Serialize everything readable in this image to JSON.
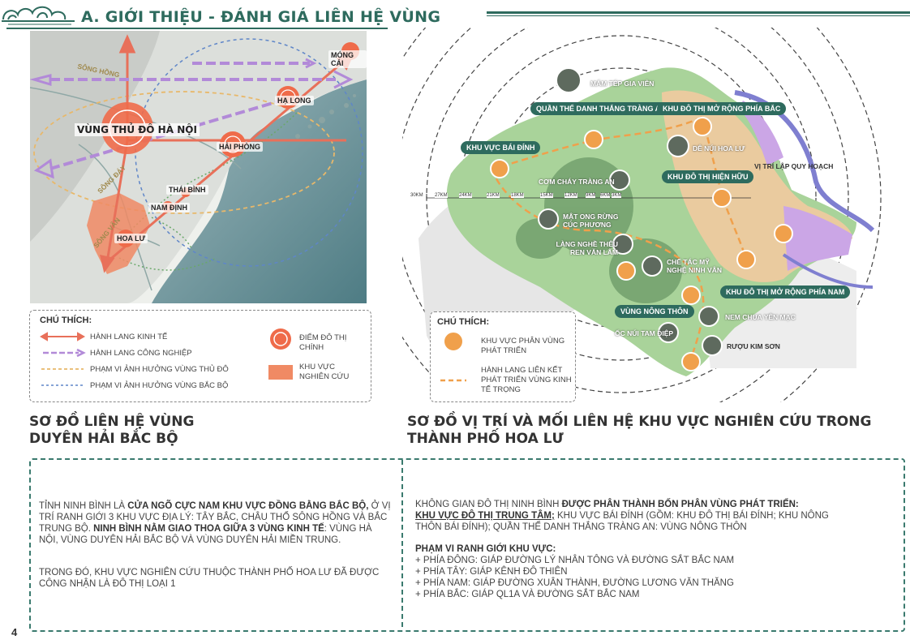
{
  "header": {
    "title": "A. GIỚI THIỆU - ĐÁNH GIÁ LIÊN HỆ VÙNG"
  },
  "left_map": {
    "labels": {
      "song_hong": "SÔNG HỒNG",
      "song_day": "SÔNG ĐÁY",
      "song_van": "SÔNG VÂN",
      "capital_region": "VÙNG THỦ ĐÔ HÀ NỘI",
      "mong_cai": "MÓNG CÁI",
      "ha_long": "HẠ LONG",
      "hai_phong": "HẢI PHÒNG",
      "thai_binh": "THÁI BÌNH",
      "nam_dinh": "NAM ĐỊNH",
      "hoa_lu": "HOA LƯ"
    },
    "legend": {
      "title": "CHÚ THÍCH:",
      "items": [
        "HÀNH LANG KINH TẾ",
        "HÀNH LANG CÔNG NGHIỆP",
        "PHẠM VI ẢNH HƯỞNG VÙNG THỦ ĐÔ",
        "PHẠM VI ẢNH HƯỞNG VÙNG BẮC BỘ"
      ],
      "right_items": [
        "ĐIỂM ĐÔ THỊ CHÍNH",
        "KHU VỰC NGHIÊN CỨU"
      ]
    },
    "title_line1": "SƠ ĐỒ LIÊN HỆ VÙNG",
    "title_line2": "DUYÊN HẢI BẮC BỘ"
  },
  "right_map": {
    "zones": [
      "QUẦN THỂ DANH THẮNG TRÀNG AN",
      "KHU ĐÔ THỊ MỞ RỘNG PHÍA BẮC",
      "KHU VỰC BÁI ĐÍNH",
      "KHU ĐÔ THỊ HIỆN HỮU",
      "KHU ĐÔ THỊ MỞ RỘNG PHÍA NAM",
      "VÙNG NÔNG THÔN"
    ],
    "products": [
      "MẮM TÉP GIA VIỄN",
      "DÊ NÚI HOA LƯ",
      "CƠM CHÁY TRÀNG AN",
      "MẬT ONG RỪNG CÚC PHƯƠNG",
      "LÀNG NGHỀ THÊU REN VĂN LÂM",
      "CHẾ TÁC MỸ NGHỆ NINH VÂN",
      "NEM CHUA YÊN MẠC",
      "ỐC NÚI TAM ĐIỆP",
      "RƯỢU KIM SƠN"
    ],
    "planning_position": "VỊ TRÍ LẬP QUY HOẠCH",
    "scale_labels": [
      "30KM",
      "27KM",
      "24KM",
      "21KM",
      "18KM",
      "15KM",
      "12KM",
      "9KM",
      "6KM",
      "3KM"
    ],
    "legend": {
      "title": "CHÚ THÍCH:",
      "items": [
        "KHU VỰC PHÂN VÙNG PHÁT TRIỂN",
        "HÀNH LANG LIÊN KẾT PHÁT TRIỂN VÙNG KINH TẾ TRỌNG"
      ]
    },
    "title_line1": "SƠ ĐỒ VỊ TRÍ VÀ MỐI LIÊN HỆ KHU VỰC NGHIÊN CỨU TRONG",
    "title_line2": "THÀNH PHỐ HOA LƯ"
  },
  "info_left": {
    "p1_a": "TỈNH NINH BÌNH LÀ ",
    "p1_b": "CỬA NGÕ CỰC NAM KHU VỰC ĐỒNG BẰNG BẮC BỘ,",
    "p1_c": " Ở VỊ TRÍ RANH GIỚI 3 KHU VỰC ĐỊA LÝ: TÂY BẮC, CHÂU THỔ SÔNG HỒNG VÀ BẮC TRUNG BỘ. ",
    "p1_d": "NINH BÌNH NẰM GIAO THOA GIỮA 3 VÙNG KINH TẾ",
    "p1_e": ": VÙNG HÀ NỘI, VÙNG DUYÊN HẢI BẮC BỘ VÀ VÙNG DUYÊN HẢI MIỀN TRUNG.",
    "p2": "TRONG ĐÓ, KHU VỰC NGHIÊN CỨU THUỘC THÀNH PHỐ HOA LƯ ĐÃ ĐƯỢC CÔNG NHẬN LÀ ĐÔ THỊ LOẠI 1"
  },
  "info_right": {
    "p1_a": "KHÔNG GIAN ĐÔ THỊ NINH BÌNH ",
    "p1_b": "ĐƯỢC PHÂN THÀNH BỐN PHÂN VÙNG PHÁT TRIỂN:",
    "p1_c": "KHU VỰC ĐÔ THỊ TRUNG TÂM;",
    "p1_d": " KHU VỰC BÁI ĐÍNH (GỒM: KHU ĐÔ THỊ BÁI ĐÍNH; KHU NÔNG THÔN BÁI ĐÍNH); QUẦN THỂ DANH THẮNG TRÀNG AN: VÙNG NÔNG THÔN",
    "boundary_title": "PHẠM VI RANH GIỚI KHU VỰC:",
    "boundary_items": [
      "+ PHÍA ĐÔNG: GIÁP ĐƯỜNG LÝ NHÂN TÔNG VÀ ĐƯỜNG SẮT BẮC NAM",
      "+ PHÍA TÂY: GIÁP KÊNH ĐÔ THIÊN",
      "+ PHÍA NAM: GIÁP ĐƯỜNG XUÂN THÀNH, ĐƯỜNG LƯƠNG VĂN THĂNG",
      "+ PHÍA BẮC: GIÁP QL1A VÀ ĐƯỜNG SẮT BẮC NAM"
    ]
  },
  "page_number": "4",
  "colors": {
    "accent": "#2e6b5e",
    "orange": "#f0a04b",
    "red": "#e8583a",
    "purple": "#b28ad8"
  }
}
